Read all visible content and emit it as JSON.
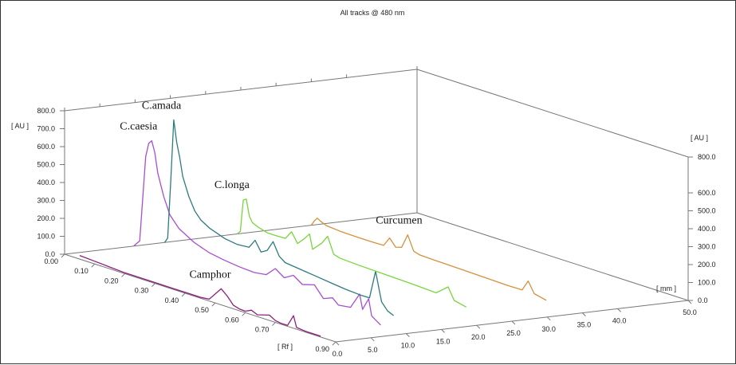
{
  "chart_data": {
    "type": "line",
    "title": "All tracks @ 480 nm",
    "xlabel": "[ Rf ]",
    "ylabel": "[ AU ]",
    "zlabel": "[ mm ]",
    "xlim": [
      0,
      0.9
    ],
    "ylim": [
      0,
      800
    ],
    "zlim": [
      0,
      50
    ],
    "x_ticks": [
      "0.00",
      "0.10",
      "0.20",
      "0.30",
      "0.40",
      "0.50",
      "0.60",
      "0.70",
      "0.90"
    ],
    "y_ticks": [
      "0.0",
      "100.0",
      "200.0",
      "300.0",
      "400.0",
      "500.0",
      "600.0",
      "700.0",
      "800.0"
    ],
    "y_ticks_right": [
      "0.0",
      "100.0",
      "200.0",
      "300.0",
      "400.0",
      "500.0",
      "600.0",
      "800.0"
    ],
    "z_ticks": [
      "0.0",
      "5.0",
      "10.0",
      "15.0",
      "20.0",
      "25.0",
      "30.0",
      "35.0",
      "40.0",
      "50.0"
    ],
    "series": [
      {
        "name": "Camphor",
        "color": "#8e1f7e",
        "track_mm": 0,
        "points": [
          [
            0.05,
            20
          ],
          [
            0.1,
            15
          ],
          [
            0.15,
            10
          ],
          [
            0.2,
            5
          ],
          [
            0.25,
            5
          ],
          [
            0.3,
            5
          ],
          [
            0.35,
            5
          ],
          [
            0.4,
            5
          ],
          [
            0.45,
            5
          ],
          [
            0.48,
            10
          ],
          [
            0.5,
            50
          ],
          [
            0.52,
            90
          ],
          [
            0.54,
            60
          ],
          [
            0.56,
            20
          ],
          [
            0.58,
            10
          ],
          [
            0.6,
            8
          ],
          [
            0.62,
            25
          ],
          [
            0.64,
            10
          ],
          [
            0.68,
            30
          ],
          [
            0.7,
            10
          ],
          [
            0.72,
            5
          ],
          [
            0.74,
            5
          ],
          [
            0.76,
            70
          ],
          [
            0.77,
            10
          ],
          [
            0.8,
            5
          ],
          [
            0.85,
            5
          ]
        ]
      },
      {
        "name": "C.caesia",
        "color": "#a64fd0",
        "track_mm": 9.8,
        "points": [
          [
            0.0,
            0
          ],
          [
            0.02,
            40
          ],
          [
            0.04,
            520
          ],
          [
            0.05,
            600
          ],
          [
            0.06,
            620
          ],
          [
            0.07,
            560
          ],
          [
            0.08,
            450
          ],
          [
            0.1,
            330
          ],
          [
            0.12,
            240
          ],
          [
            0.15,
            180
          ],
          [
            0.2,
            130
          ],
          [
            0.25,
            100
          ],
          [
            0.3,
            85
          ],
          [
            0.35,
            75
          ],
          [
            0.4,
            70
          ],
          [
            0.44,
            80
          ],
          [
            0.47,
            130
          ],
          [
            0.5,
            95
          ],
          [
            0.53,
            125
          ],
          [
            0.56,
            90
          ],
          [
            0.6,
            110
          ],
          [
            0.63,
            50
          ],
          [
            0.66,
            70
          ],
          [
            0.68,
            40
          ],
          [
            0.72,
            50
          ],
          [
            0.75,
            140
          ],
          [
            0.76,
            60
          ],
          [
            0.78,
            130
          ],
          [
            0.79,
            40
          ],
          [
            0.82,
            5
          ]
        ]
      },
      {
        "name": "C.amada",
        "color": "#2e7b7f",
        "track_mm": 14.2,
        "points": [
          [
            0.0,
            0
          ],
          [
            0.01,
            30
          ],
          [
            0.02,
            350
          ],
          [
            0.03,
            700
          ],
          [
            0.04,
            580
          ],
          [
            0.05,
            500
          ],
          [
            0.06,
            400
          ],
          [
            0.08,
            300
          ],
          [
            0.1,
            230
          ],
          [
            0.12,
            190
          ],
          [
            0.15,
            160
          ],
          [
            0.2,
            130
          ],
          [
            0.24,
            120
          ],
          [
            0.28,
            125
          ],
          [
            0.3,
            175
          ],
          [
            0.32,
            120
          ],
          [
            0.34,
            140
          ],
          [
            0.36,
            200
          ],
          [
            0.38,
            130
          ],
          [
            0.4,
            105
          ],
          [
            0.45,
            95
          ],
          [
            0.5,
            85
          ],
          [
            0.55,
            75
          ],
          [
            0.6,
            65
          ],
          [
            0.65,
            60
          ],
          [
            0.68,
            60
          ],
          [
            0.7,
            220
          ],
          [
            0.72,
            60
          ],
          [
            0.74,
            20
          ],
          [
            0.76,
            5
          ]
        ]
      },
      {
        "name": "C.longa",
        "color": "#77d63c",
        "track_mm": 24.5,
        "points": [
          [
            0.0,
            0
          ],
          [
            0.01,
            20
          ],
          [
            0.02,
            200
          ],
          [
            0.03,
            210
          ],
          [
            0.04,
            120
          ],
          [
            0.05,
            90
          ],
          [
            0.07,
            75
          ],
          [
            0.1,
            60
          ],
          [
            0.13,
            60
          ],
          [
            0.16,
            62
          ],
          [
            0.18,
            110
          ],
          [
            0.2,
            55
          ],
          [
            0.22,
            90
          ],
          [
            0.24,
            130
          ],
          [
            0.25,
            50
          ],
          [
            0.28,
            100
          ],
          [
            0.3,
            150
          ],
          [
            0.32,
            60
          ],
          [
            0.34,
            50
          ],
          [
            0.4,
            45
          ],
          [
            0.5,
            40
          ],
          [
            0.6,
            35
          ],
          [
            0.66,
            30
          ],
          [
            0.7,
            85
          ],
          [
            0.72,
            20
          ],
          [
            0.76,
            5
          ]
        ]
      },
      {
        "name": "Curcumen",
        "color": "#d4913c",
        "track_mm": 35,
        "points": [
          [
            0.0,
            0
          ],
          [
            0.01,
            30
          ],
          [
            0.02,
            50
          ],
          [
            0.03,
            40
          ],
          [
            0.05,
            25
          ],
          [
            0.1,
            18
          ],
          [
            0.15,
            16
          ],
          [
            0.2,
            16
          ],
          [
            0.24,
            18
          ],
          [
            0.26,
            70
          ],
          [
            0.28,
            30
          ],
          [
            0.3,
            40
          ],
          [
            0.32,
            120
          ],
          [
            0.34,
            40
          ],
          [
            0.36,
            30
          ],
          [
            0.4,
            28
          ],
          [
            0.5,
            24
          ],
          [
            0.6,
            20
          ],
          [
            0.65,
            18
          ],
          [
            0.7,
            20
          ],
          [
            0.72,
            80
          ],
          [
            0.74,
            20
          ],
          [
            0.78,
            5
          ]
        ]
      }
    ]
  }
}
